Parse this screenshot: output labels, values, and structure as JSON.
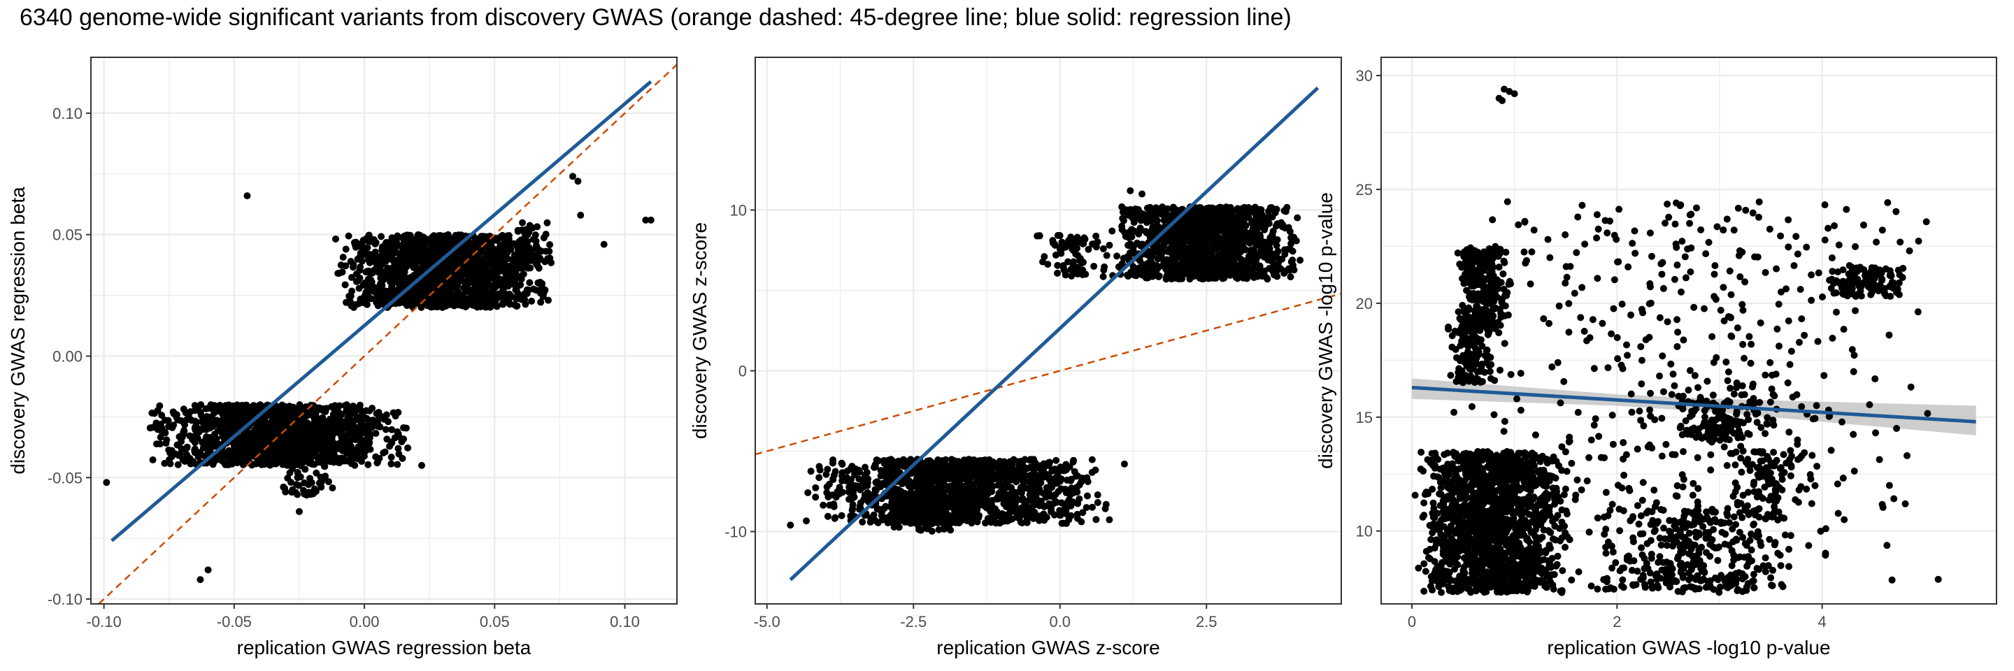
{
  "title": "6340 genome-wide significant variants from discovery GWAS (orange dashed: 45-degree line; blue solid: regression line)",
  "colors": {
    "points": "#000000",
    "regression": "#1f5a96",
    "diagonal": "#cc4c02",
    "ci_band": "#bdbdbd",
    "grid": "#ebebeb"
  },
  "chart_data": [
    {
      "type": "scatter",
      "xlabel": "replication GWAS regression beta",
      "ylabel": "discovery GWAS regression beta",
      "xlim": [
        -0.105,
        0.12
      ],
      "ylim": [
        -0.102,
        0.123
      ],
      "xticks": [
        -0.1,
        -0.05,
        0.0,
        0.05,
        0.1
      ],
      "xtick_labels": [
        "-0.10",
        "-0.05",
        "0.00",
        "0.05",
        "0.10"
      ],
      "yticks": [
        -0.1,
        -0.05,
        0.0,
        0.05,
        0.1
      ],
      "ytick_labels": [
        "-0.10",
        "-0.05",
        "0.00",
        "0.05",
        "0.10"
      ],
      "grid": true,
      "clusters": [
        {
          "x": [
            -0.085,
            0.02
          ],
          "y": [
            -0.045,
            -0.02
          ],
          "n": 1300,
          "seed": 11
        },
        {
          "x": [
            -0.035,
            -0.01
          ],
          "y": [
            -0.058,
            -0.04
          ],
          "n": 60,
          "seed": 12
        },
        {
          "x": [
            -0.015,
            0.075
          ],
          "y": [
            0.02,
            0.05
          ],
          "n": 1300,
          "seed": 13
        },
        {
          "x": [
            0.05,
            0.075
          ],
          "y": [
            0.035,
            0.055
          ],
          "n": 60,
          "seed": 14
        }
      ],
      "points": [
        [
          -0.045,
          0.066
        ],
        [
          -0.099,
          -0.052
        ],
        [
          -0.063,
          -0.092
        ],
        [
          -0.06,
          -0.088
        ],
        [
          -0.025,
          -0.064
        ],
        [
          0.022,
          -0.045
        ],
        [
          0.08,
          0.074
        ],
        [
          0.082,
          0.072
        ],
        [
          0.092,
          0.046
        ],
        [
          0.108,
          0.056
        ],
        [
          0.11,
          0.056
        ],
        [
          0.083,
          0.058
        ]
      ],
      "regression_line": [
        [
          -0.097,
          -0.076
        ],
        [
          0.11,
          0.113
        ]
      ],
      "diagonal_line": [
        [
          -0.102,
          -0.102
        ],
        [
          0.12,
          0.12
        ]
      ]
    },
    {
      "type": "scatter",
      "xlabel": "replication GWAS z-score",
      "ylabel": "discovery GWAS z-score",
      "xlim": [
        -5.2,
        4.8
      ],
      "ylim": [
        -14.5,
        19.5
      ],
      "xticks": [
        -5.0,
        -2.5,
        0.0,
        2.5
      ],
      "xtick_labels": [
        "-5.0",
        "-2.5",
        "0.0",
        "2.5"
      ],
      "yticks": [
        -10,
        0,
        10
      ],
      "ytick_labels": [
        "-10",
        "0",
        "10"
      ],
      "grid": true,
      "clusters": [
        {
          "x": [
            -4.5,
            1.0
          ],
          "y": [
            -9.5,
            -5.5
          ],
          "n": 1300,
          "seed": 21
        },
        {
          "x": [
            -3.0,
            -1.2
          ],
          "y": [
            -10.0,
            -8.0
          ],
          "n": 120,
          "seed": 22
        },
        {
          "x": [
            0.8,
            4.2
          ],
          "y": [
            5.7,
            10.2
          ],
          "n": 1300,
          "seed": 23
        },
        {
          "x": [
            -0.5,
            1.0
          ],
          "y": [
            5.8,
            8.5
          ],
          "n": 80,
          "seed": 24
        }
      ],
      "points": [
        [
          1.2,
          11.2
        ],
        [
          1.4,
          11.0
        ],
        [
          -4.6,
          -9.6
        ],
        [
          1.1,
          -5.8
        ]
      ],
      "regression_line": [
        [
          -4.6,
          -13.0
        ],
        [
          4.4,
          17.6
        ]
      ],
      "diagonal_line": [
        [
          -5.2,
          -5.2
        ],
        [
          4.8,
          4.8
        ]
      ]
    },
    {
      "type": "scatter",
      "xlabel": "replication GWAS -log10 p-value",
      "ylabel": "discovery GWAS -log10 p-value",
      "xlim": [
        -0.3,
        5.7
      ],
      "ylim": [
        6.8,
        30.8
      ],
      "xticks": [
        0,
        2,
        4
      ],
      "xtick_labels": [
        "0",
        "2",
        "4"
      ],
      "yticks": [
        10,
        15,
        20,
        25,
        30
      ],
      "ytick_labels": [
        "10",
        "15",
        "20",
        "25",
        "30"
      ],
      "grid": true,
      "clusters": [
        {
          "x": [
            0.0,
            1.6
          ],
          "y": [
            7.3,
            13.5
          ],
          "n": 1500,
          "seed": 31
        },
        {
          "x": [
            1.6,
            3.8
          ],
          "y": [
            7.3,
            11.0
          ],
          "n": 300,
          "seed": 32
        },
        {
          "x": [
            0.4,
            1.0
          ],
          "y": [
            19.0,
            22.5
          ],
          "n": 250,
          "seed": 33
        },
        {
          "x": [
            0.3,
            0.9
          ],
          "y": [
            16.5,
            19.5
          ],
          "n": 150,
          "seed": 34
        },
        {
          "x": [
            4.0,
            4.9
          ],
          "y": [
            20.3,
            21.6
          ],
          "n": 120,
          "seed": 35
        },
        {
          "x": [
            2.5,
            3.5
          ],
          "y": [
            14.0,
            16.0
          ],
          "n": 120,
          "seed": 36
        },
        {
          "x": [
            3.0,
            3.9
          ],
          "y": [
            10.5,
            13.5
          ],
          "n": 100,
          "seed": 37
        },
        {
          "x": [
            0.0,
            5.5
          ],
          "y": [
            7.5,
            24.5
          ],
          "n": 550,
          "seed": 38
        }
      ],
      "points": [
        [
          0.85,
          29.0
        ],
        [
          0.95,
          29.3
        ],
        [
          1.0,
          29.2
        ],
        [
          0.9,
          29.4
        ],
        [
          0.88,
          28.9
        ]
      ],
      "regression_line": [
        [
          0.0,
          16.3
        ],
        [
          5.5,
          14.8
        ]
      ],
      "ci_band": [
        [
          0.0,
          15.8,
          16.7
        ],
        [
          2.0,
          15.5,
          16.0
        ],
        [
          3.0,
          15.2,
          15.8
        ],
        [
          5.5,
          14.2,
          15.5
        ]
      ]
    }
  ]
}
